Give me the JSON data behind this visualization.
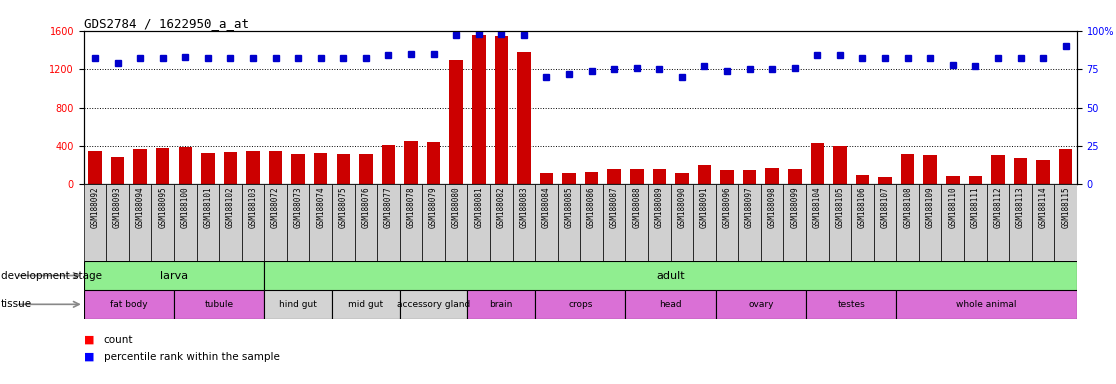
{
  "title": "GDS2784 / 1622950_a_at",
  "samples": [
    "GSM188092",
    "GSM188093",
    "GSM188094",
    "GSM188095",
    "GSM188100",
    "GSM188101",
    "GSM188102",
    "GSM188103",
    "GSM188072",
    "GSM188073",
    "GSM188074",
    "GSM188075",
    "GSM188076",
    "GSM188077",
    "GSM188078",
    "GSM188079",
    "GSM188080",
    "GSM188081",
    "GSM188082",
    "GSM188083",
    "GSM188084",
    "GSM188085",
    "GSM188086",
    "GSM188087",
    "GSM188088",
    "GSM188089",
    "GSM188090",
    "GSM188091",
    "GSM188096",
    "GSM188097",
    "GSM188098",
    "GSM188099",
    "GSM188104",
    "GSM188105",
    "GSM188106",
    "GSM188107",
    "GSM188108",
    "GSM188109",
    "GSM188110",
    "GSM188111",
    "GSM188112",
    "GSM188113",
    "GSM188114",
    "GSM188115"
  ],
  "counts": [
    350,
    280,
    370,
    380,
    390,
    330,
    340,
    350,
    350,
    320,
    330,
    320,
    320,
    410,
    450,
    440,
    1300,
    1560,
    1540,
    1380,
    115,
    115,
    130,
    155,
    160,
    160,
    115,
    200,
    145,
    150,
    165,
    160,
    430,
    400,
    100,
    80,
    320,
    310,
    85,
    85,
    310,
    270,
    250,
    370
  ],
  "percentiles": [
    82,
    79,
    82,
    82,
    83,
    82,
    82,
    82,
    82,
    82,
    82,
    82,
    82,
    84,
    85,
    85,
    97,
    98,
    98,
    97,
    70,
    72,
    74,
    75,
    76,
    75,
    70,
    77,
    74,
    75,
    75,
    76,
    84,
    84,
    82,
    82,
    82,
    82,
    78,
    77,
    82,
    82,
    82,
    90
  ],
  "bar_color": "#cc0000",
  "dot_color": "#0000cc",
  "ylim_left": [
    0,
    1600
  ],
  "ylim_right": [
    0,
    100
  ],
  "yticks_left": [
    0,
    400,
    800,
    1200,
    1600
  ],
  "yticks_right": [
    0,
    25,
    50,
    75,
    100
  ],
  "ytick_right_labels": [
    "0",
    "25",
    "50",
    "75",
    "100%"
  ],
  "dev_stage_groups": [
    {
      "label": "larva",
      "start": 0,
      "end": 8,
      "color": "#90ee90"
    },
    {
      "label": "adult",
      "start": 8,
      "end": 44,
      "color": "#90ee90"
    }
  ],
  "tissue_groups": [
    {
      "label": "fat body",
      "start": 0,
      "end": 4,
      "color": "#da70d6"
    },
    {
      "label": "tubule",
      "start": 4,
      "end": 8,
      "color": "#da70d6"
    },
    {
      "label": "hind gut",
      "start": 8,
      "end": 11,
      "color": "#d3d3d3"
    },
    {
      "label": "mid gut",
      "start": 11,
      "end": 14,
      "color": "#d3d3d3"
    },
    {
      "label": "accessory gland",
      "start": 14,
      "end": 17,
      "color": "#d3d3d3"
    },
    {
      "label": "brain",
      "start": 17,
      "end": 20,
      "color": "#da70d6"
    },
    {
      "label": "crops",
      "start": 20,
      "end": 24,
      "color": "#da70d6"
    },
    {
      "label": "head",
      "start": 24,
      "end": 28,
      "color": "#da70d6"
    },
    {
      "label": "ovary",
      "start": 28,
      "end": 32,
      "color": "#da70d6"
    },
    {
      "label": "testes",
      "start": 32,
      "end": 36,
      "color": "#da70d6"
    },
    {
      "label": "whole animal",
      "start": 36,
      "end": 44,
      "color": "#da70d6"
    }
  ],
  "background_color": "#ffffff",
  "xtick_bg": "#d0d0d0",
  "grid_color": "#555555",
  "tick_label_fontsize": 7,
  "label_fontsize": 8
}
